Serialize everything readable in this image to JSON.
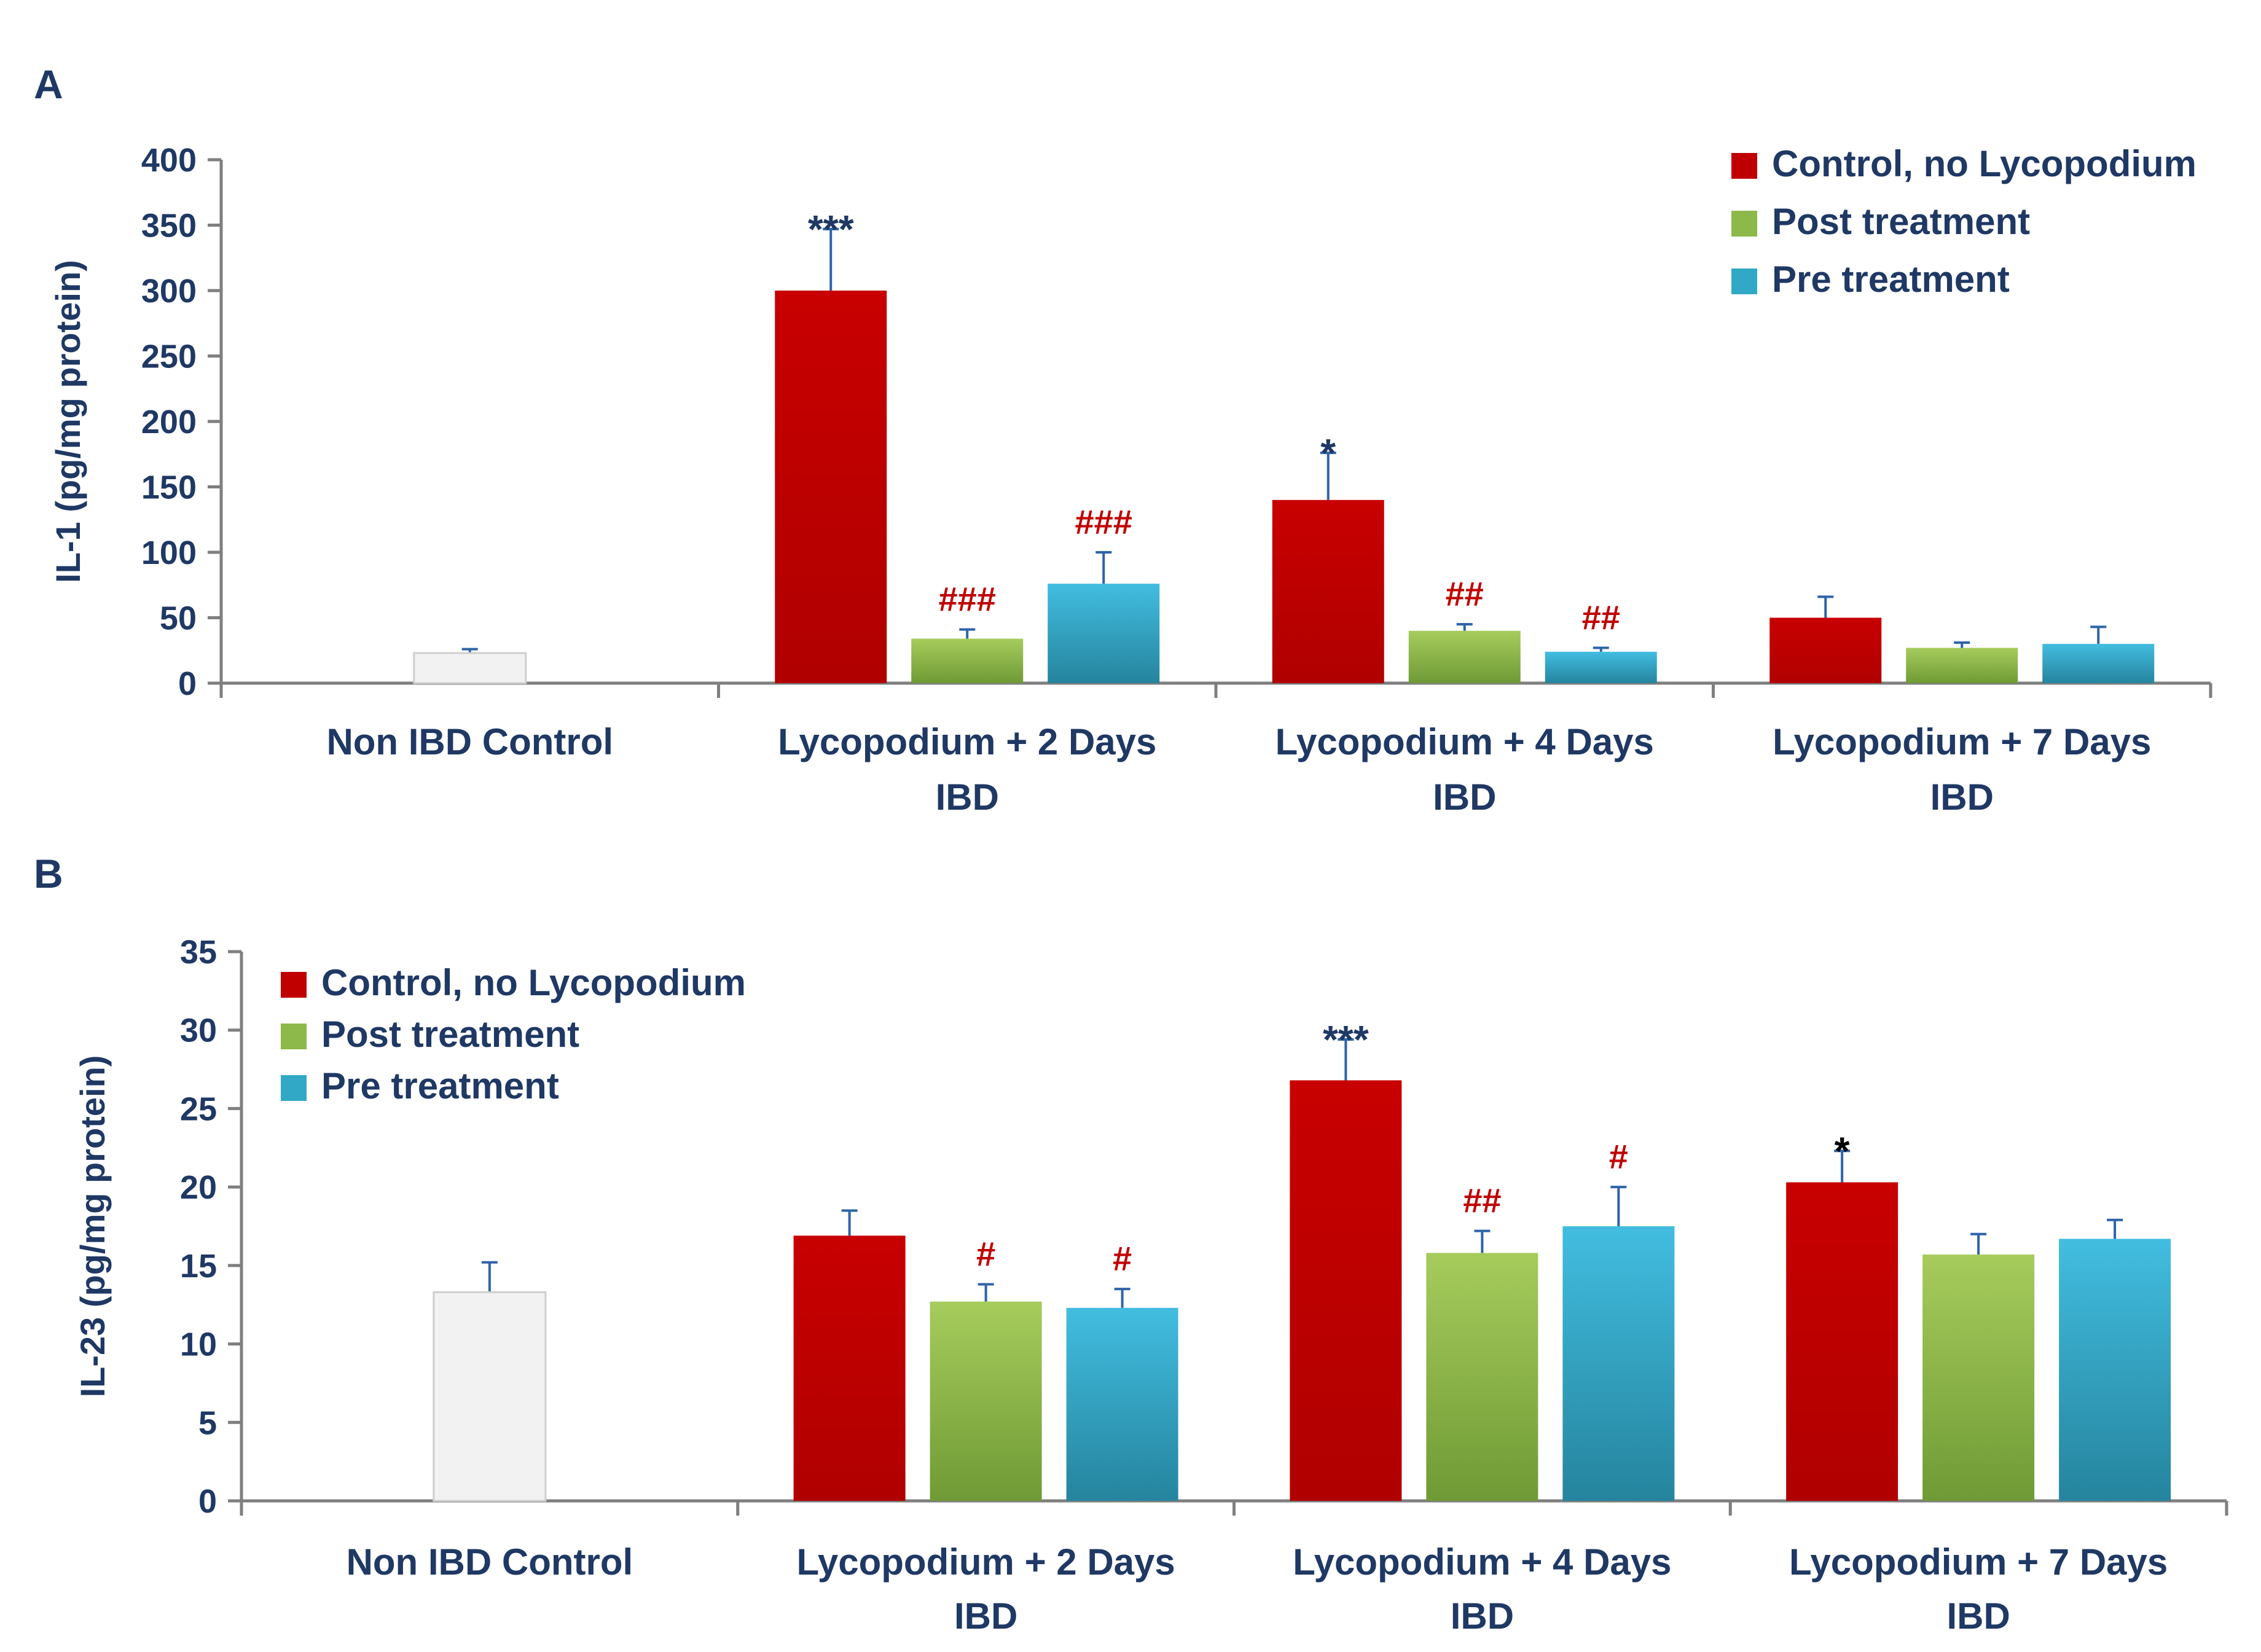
{
  "figure": {
    "panel_labels": [
      "A",
      "B"
    ],
    "colors": {
      "text": "#1f3864",
      "control": "#c00000",
      "post": "#8db84a",
      "pre": "#31a9c6",
      "nonibd": "#f2f2f2",
      "sig_star": "#1f3864",
      "sig_hash": "#c00000",
      "axis": "#7f7f7f",
      "error": "#2e63a8"
    }
  },
  "chart_data": [
    {
      "type": "bar",
      "panel": "A",
      "title": "",
      "ylabel": "IL-1 (pg/mg protein)",
      "xlabel": "",
      "ylim": [
        0,
        400
      ],
      "yticks": [
        0,
        50,
        100,
        150,
        200,
        250,
        300,
        350,
        400
      ],
      "ytick_labels": [
        "0",
        "50",
        "100",
        "150",
        "200",
        "250",
        "300",
        "350",
        "400"
      ],
      "legend_position": "top-right",
      "categories": [
        {
          "label_lines": [
            "Non IBD Control"
          ],
          "bars": [
            {
              "series": "Non IBD",
              "value": 23,
              "error": 3,
              "sig": ""
            }
          ]
        },
        {
          "label_lines": [
            "Lycopodium + 2 Days",
            "IBD"
          ],
          "bars": [
            {
              "series": "Control, no Lycopodium",
              "value": 300,
              "error": 47,
              "sig": "***"
            },
            {
              "series": "Post treatment",
              "value": 34,
              "error": 7,
              "sig": "###"
            },
            {
              "series": "Pre treatment",
              "value": 76,
              "error": 24,
              "sig": "###"
            }
          ]
        },
        {
          "label_lines": [
            "Lycopodium + 4 Days",
            "IBD"
          ],
          "bars": [
            {
              "series": "Control, no Lycopodium",
              "value": 140,
              "error": 36,
              "sig": "*"
            },
            {
              "series": "Post treatment",
              "value": 40,
              "error": 5,
              "sig": "##"
            },
            {
              "series": "Pre treatment",
              "value": 24,
              "error": 3,
              "sig": "##"
            }
          ]
        },
        {
          "label_lines": [
            "Lycopodium + 7 Days",
            "IBD"
          ],
          "bars": [
            {
              "series": "Control, no Lycopodium",
              "value": 50,
              "error": 16,
              "sig": ""
            },
            {
              "series": "Post treatment",
              "value": 27,
              "error": 4,
              "sig": ""
            },
            {
              "series": "Pre treatment",
              "value": 30,
              "error": 13,
              "sig": ""
            }
          ]
        }
      ],
      "legend": [
        "Control, no Lycopodium",
        "Post treatment",
        "Pre treatment"
      ]
    },
    {
      "type": "bar",
      "panel": "B",
      "title": "",
      "ylabel": "IL-23 (pg/mg protein)",
      "xlabel": "",
      "ylim": [
        0,
        35
      ],
      "yticks": [
        0,
        5,
        10,
        15,
        20,
        25,
        30,
        35
      ],
      "ytick_labels": [
        "0",
        "5",
        "10",
        "15",
        "20",
        "25",
        "30",
        "35"
      ],
      "legend_position": "top-left",
      "categories": [
        {
          "label_lines": [
            "Non IBD Control"
          ],
          "bars": [
            {
              "series": "Non IBD",
              "value": 13.3,
              "error": 1.9,
              "sig": ""
            }
          ]
        },
        {
          "label_lines": [
            "Lycopodium + 2 Days",
            "IBD"
          ],
          "bars": [
            {
              "series": "Control, no Lycopodium",
              "value": 16.9,
              "error": 1.6,
              "sig": ""
            },
            {
              "series": "Post treatment",
              "value": 12.7,
              "error": 1.1,
              "sig": "#"
            },
            {
              "series": "Pre treatment",
              "value": 12.3,
              "error": 1.2,
              "sig": "#"
            }
          ]
        },
        {
          "label_lines": [
            "Lycopodium + 4 Days",
            "IBD"
          ],
          "bars": [
            {
              "series": "Control, no Lycopodium",
              "value": 26.8,
              "error": 2.6,
              "sig": "***"
            },
            {
              "series": "Post treatment",
              "value": 15.8,
              "error": 1.4,
              "sig": "##"
            },
            {
              "series": "Pre treatment",
              "value": 17.5,
              "error": 2.5,
              "sig": "#"
            }
          ]
        },
        {
          "label_lines": [
            "Lycopodium + 7 Days",
            "IBD"
          ],
          "bars": [
            {
              "series": "Control, no Lycopodium",
              "value": 20.3,
              "error": 2.0,
              "sig": "*"
            },
            {
              "series": "Post treatment",
              "value": 15.7,
              "error": 1.3,
              "sig": ""
            },
            {
              "series": "Pre treatment",
              "value": 16.7,
              "error": 1.2,
              "sig": ""
            }
          ]
        }
      ],
      "legend": [
        "Control, no Lycopodium",
        "Post treatment",
        "Pre treatment"
      ]
    }
  ]
}
